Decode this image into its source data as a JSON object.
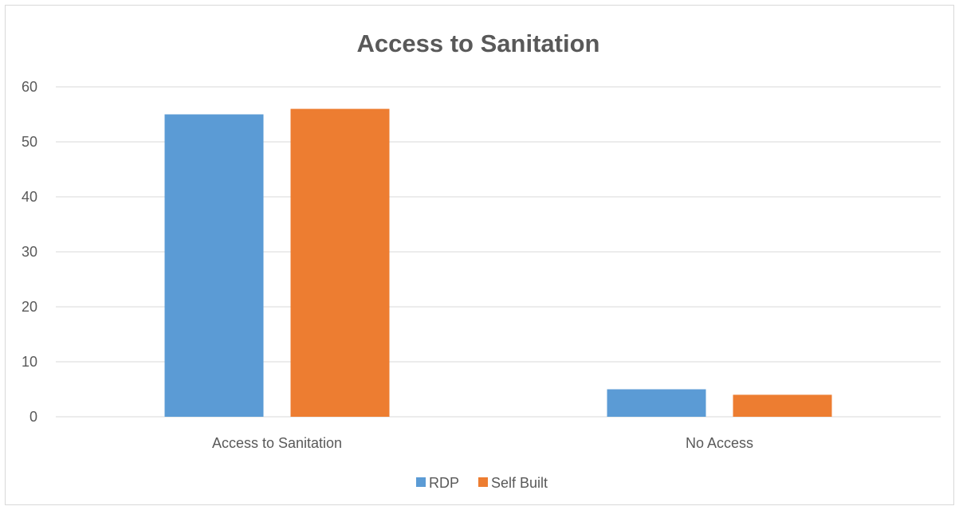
{
  "chart_data": {
    "type": "bar",
    "title": "Access to Sanitation",
    "categories": [
      "Access to Sanitation",
      "No Access"
    ],
    "series": [
      {
        "name": "RDP",
        "values": [
          55,
          5
        ],
        "color": "#5B9BD5"
      },
      {
        "name": "Self Built",
        "values": [
          56,
          4
        ],
        "color": "#ED7D31"
      }
    ],
    "ylim": [
      0,
      60
    ],
    "yticks": [
      0,
      10,
      20,
      30,
      40,
      50,
      60
    ],
    "grid": true,
    "legend": "bottom"
  }
}
